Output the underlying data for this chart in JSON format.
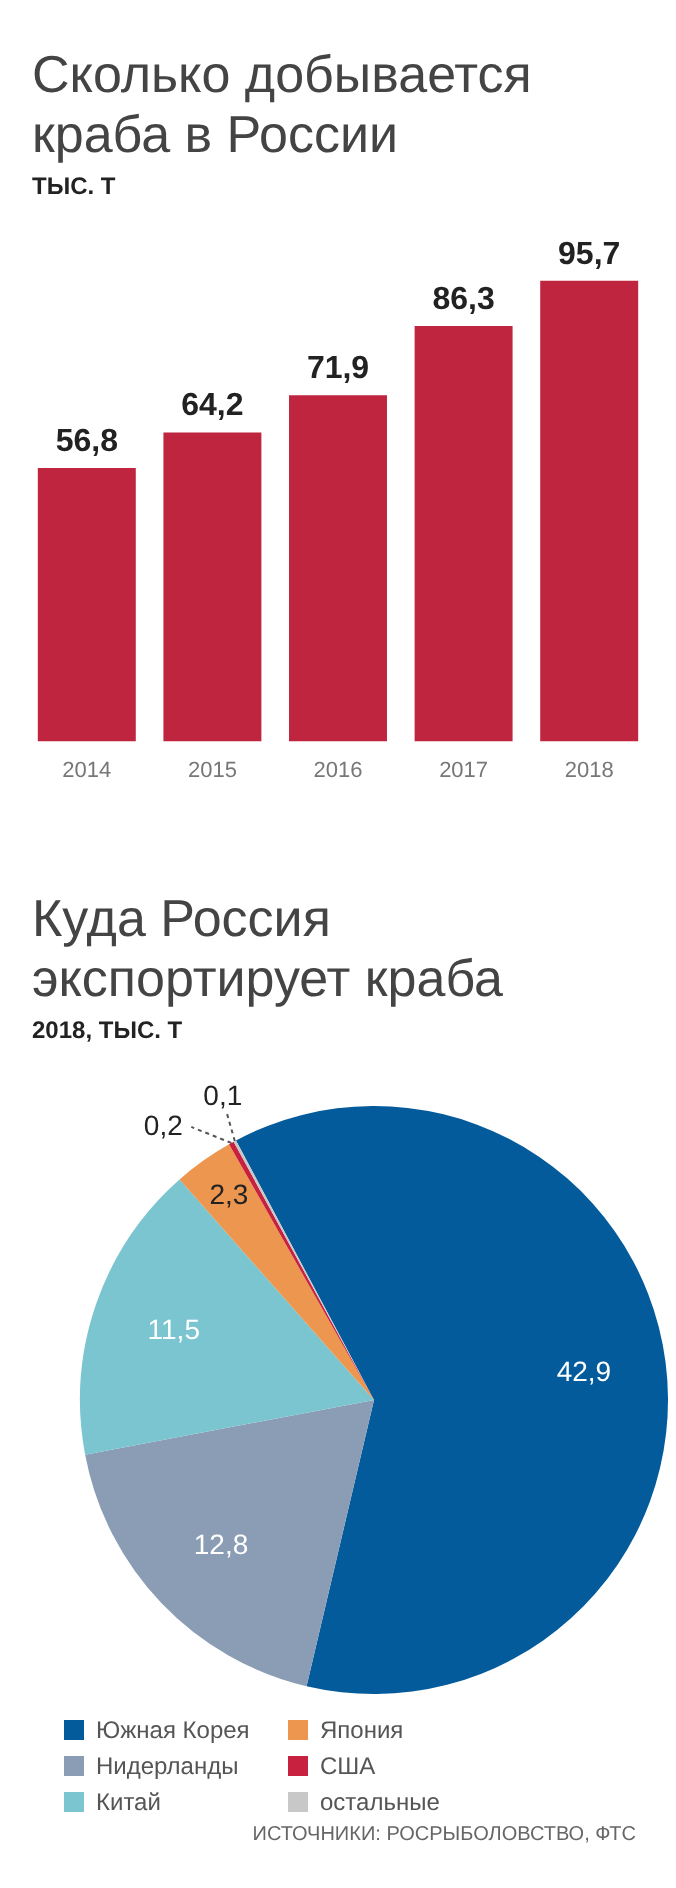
{
  "chart_data": [
    {
      "type": "bar",
      "title": "Сколько добывается краба в России",
      "subtitle": "ТЫС. Т",
      "categories": [
        "2014",
        "2015",
        "2016",
        "2017",
        "2018"
      ],
      "values": [
        56.8,
        64.2,
        71.9,
        86.3,
        95.7
      ],
      "value_labels": [
        "56,8",
        "64,2",
        "71,9",
        "86,3",
        "95,7"
      ],
      "color": "#c0253f",
      "grid": false,
      "legend": false
    },
    {
      "type": "pie",
      "title": "Куда Россия экспортирует краба",
      "subtitle": "2018, ТЫС. Т",
      "categories": [
        "Южная Корея",
        "Нидерланды",
        "Китай",
        "Япония",
        "США",
        "остальные"
      ],
      "values": [
        42.9,
        12.8,
        11.5,
        2.3,
        0.2,
        0.1
      ],
      "value_labels": [
        "42,9",
        "12,8",
        "11,5",
        "2,3",
        "0,2",
        "0,1"
      ],
      "colors": [
        "#035b9b",
        "#8a9db5",
        "#7ac5d0",
        "#ec9650",
        "#c8203f",
        "#c8c8c8"
      ],
      "legend": "bottom",
      "annotations": [
        "ИСТОЧНИКИ: РОСРЫБОЛОВСТВО, ФТС"
      ]
    }
  ]
}
